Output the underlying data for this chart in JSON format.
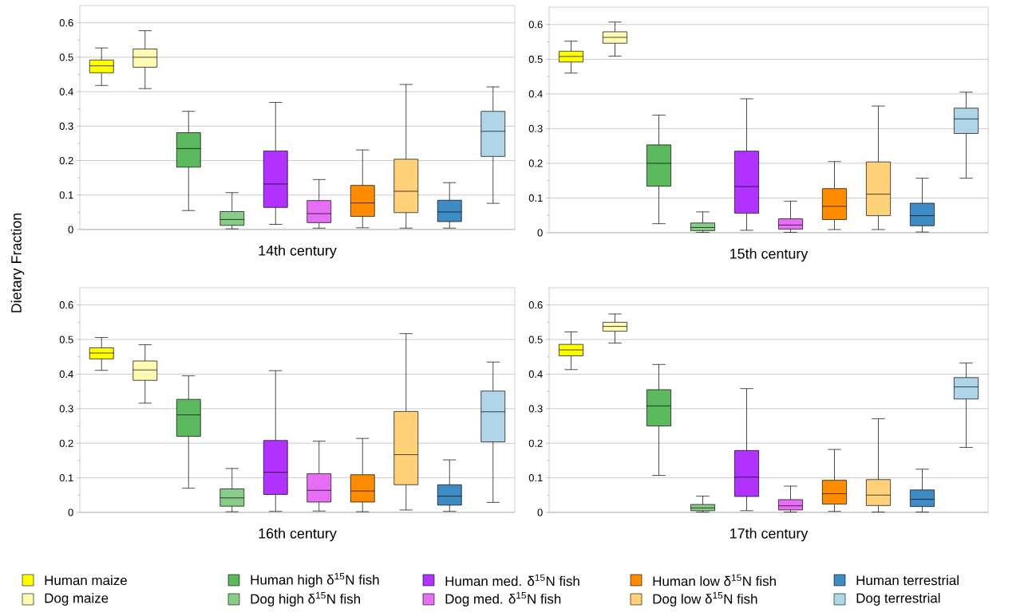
{
  "chart_data": [
    {
      "type": "box",
      "title": "14th century",
      "ylabel": "Dietary Fraction",
      "legend": "bottom",
      "grid": "y",
      "ylim": [
        0,
        0.65
      ],
      "yticks": [
        0,
        0.1,
        0.2,
        0.3,
        0.4,
        0.5,
        0.6
      ],
      "categories": [
        null,
        null,
        null,
        null,
        null,
        null,
        null,
        null,
        null,
        null
      ],
      "series": [
        {
          "name": "Human maize",
          "color": "#ffff00",
          "boxes": [
            {
              "low": 0.418,
              "q1": 0.455,
              "median": 0.475,
              "q3": 0.492,
              "high": 0.527
            },
            null,
            null,
            null,
            null,
            null,
            null,
            null,
            null,
            null
          ]
        },
        {
          "name": "Dog maize",
          "color": "#fffab4",
          "boxes": [
            null,
            {
              "low": 0.409,
              "q1": 0.471,
              "median": 0.5,
              "q3": 0.524,
              "high": 0.577
            },
            null,
            null,
            null,
            null,
            null,
            null,
            null,
            null
          ]
        },
        {
          "name": "Human high δ$^{15}$N fish",
          "color": "#5cb85c",
          "boxes": [
            null,
            null,
            {
              "low": 0.055,
              "q1": 0.181,
              "median": 0.235,
              "q3": 0.281,
              "high": 0.343
            },
            null,
            null,
            null,
            null,
            null,
            null,
            null
          ]
        },
        {
          "name": "Dog high δ$^{15}$N fish",
          "color": "#88cc88",
          "boxes": [
            null,
            null,
            null,
            {
              "low": 0.002,
              "q1": 0.012,
              "median": 0.029,
              "q3": 0.052,
              "high": 0.107
            },
            null,
            null,
            null,
            null,
            null,
            null
          ]
        },
        {
          "name": "Human med. δ$^{15}$N fish",
          "color": "#b233ff",
          "boxes": [
            null,
            null,
            null,
            null,
            {
              "low": 0.015,
              "q1": 0.064,
              "median": 0.132,
              "q3": 0.228,
              "high": 0.369
            },
            null,
            null,
            null,
            null,
            null
          ]
        },
        {
          "name": "Dog med. δ$^{15}$N fish",
          "color": "#e56ef5",
          "boxes": [
            null,
            null,
            null,
            null,
            null,
            {
              "low": 0.004,
              "q1": 0.02,
              "median": 0.046,
              "q3": 0.084,
              "high": 0.145
            },
            null,
            null,
            null,
            null
          ]
        },
        {
          "name": "Human low δ$^{15}$N fish",
          "color": "#ff8c00",
          "boxes": [
            null,
            null,
            null,
            null,
            null,
            null,
            {
              "low": 0.005,
              "q1": 0.038,
              "median": 0.077,
              "q3": 0.128,
              "high": 0.231
            },
            null,
            null,
            null
          ]
        },
        {
          "name": "Dog low δ$^{15}$N fish",
          "color": "#ffd27a",
          "boxes": [
            null,
            null,
            null,
            null,
            null,
            null,
            null,
            {
              "low": 0.004,
              "q1": 0.049,
              "median": 0.111,
              "q3": 0.204,
              "high": 0.421
            },
            null,
            null
          ]
        },
        {
          "name": "Human terrestrial",
          "color": "#3f8bc4",
          "boxes": [
            null,
            null,
            null,
            null,
            null,
            null,
            null,
            null,
            {
              "low": 0.004,
              "q1": 0.023,
              "median": 0.051,
              "q3": 0.085,
              "high": 0.136
            },
            null
          ]
        },
        {
          "name": "Dog terrestrial",
          "color": "#b0d4e8",
          "boxes": [
            null,
            null,
            null,
            null,
            null,
            null,
            null,
            null,
            null,
            {
              "low": 0.076,
              "q1": 0.212,
              "median": 0.285,
              "q3": 0.343,
              "high": 0.414
            }
          ]
        }
      ]
    },
    {
      "type": "box",
      "title": "15th century",
      "grid": "y",
      "ylim": [
        0,
        0.65
      ],
      "yticks": [
        0,
        0.1,
        0.2,
        0.3,
        0.4,
        0.5,
        0.6
      ],
      "categories": [
        null,
        null,
        null,
        null,
        null,
        null,
        null,
        null,
        null,
        null
      ],
      "series": [
        {
          "color": "#ffff00",
          "boxes": [
            {
              "low": 0.46,
              "q1": 0.492,
              "median": 0.508,
              "q3": 0.523,
              "high": 0.552
            },
            null,
            null,
            null,
            null,
            null,
            null,
            null,
            null,
            null
          ]
        },
        {
          "color": "#fffab4",
          "boxes": [
            null,
            {
              "low": 0.509,
              "q1": 0.546,
              "median": 0.563,
              "q3": 0.579,
              "high": 0.607
            },
            null,
            null,
            null,
            null,
            null,
            null,
            null,
            null
          ]
        },
        {
          "color": "#5cb85c",
          "boxes": [
            null,
            null,
            {
              "low": 0.026,
              "q1": 0.134,
              "median": 0.2,
              "q3": 0.253,
              "high": 0.339
            },
            null,
            null,
            null,
            null,
            null,
            null,
            null
          ]
        },
        {
          "color": "#88cc88",
          "boxes": [
            null,
            null,
            null,
            {
              "low": 0.001,
              "q1": 0.006,
              "median": 0.015,
              "q3": 0.028,
              "high": 0.06
            },
            null,
            null,
            null,
            null,
            null,
            null
          ]
        },
        {
          "color": "#b233ff",
          "boxes": [
            null,
            null,
            null,
            null,
            {
              "low": 0.007,
              "q1": 0.056,
              "median": 0.133,
              "q3": 0.235,
              "high": 0.386
            },
            null,
            null,
            null,
            null,
            null
          ]
        },
        {
          "color": "#e56ef5",
          "boxes": [
            null,
            null,
            null,
            null,
            null,
            {
              "low": 0.001,
              "q1": 0.01,
              "median": 0.022,
              "q3": 0.04,
              "high": 0.091
            },
            null,
            null,
            null,
            null
          ]
        },
        {
          "color": "#ff8c00",
          "boxes": [
            null,
            null,
            null,
            null,
            null,
            null,
            {
              "low": 0.009,
              "q1": 0.038,
              "median": 0.076,
              "q3": 0.127,
              "high": 0.205
            },
            null,
            null,
            null
          ]
        },
        {
          "color": "#ffd27a",
          "boxes": [
            null,
            null,
            null,
            null,
            null,
            null,
            null,
            {
              "low": 0.009,
              "q1": 0.049,
              "median": 0.111,
              "q3": 0.204,
              "high": 0.365
            },
            null,
            null
          ]
        },
        {
          "color": "#3f8bc4",
          "boxes": [
            null,
            null,
            null,
            null,
            null,
            null,
            null,
            null,
            {
              "low": 0.002,
              "q1": 0.02,
              "median": 0.049,
              "q3": 0.085,
              "high": 0.157
            },
            null
          ]
        },
        {
          "color": "#b0d4e8",
          "boxes": [
            null,
            null,
            null,
            null,
            null,
            null,
            null,
            null,
            null,
            {
              "low": 0.157,
              "q1": 0.286,
              "median": 0.328,
              "q3": 0.359,
              "high": 0.405
            }
          ]
        }
      ]
    },
    {
      "type": "box",
      "title": "16th century",
      "grid": "y",
      "ylim": [
        0,
        0.65
      ],
      "yticks": [
        0,
        0.1,
        0.2,
        0.3,
        0.4,
        0.5,
        0.6
      ],
      "categories": [
        null,
        null,
        null,
        null,
        null,
        null,
        null,
        null,
        null,
        null
      ],
      "series": [
        {
          "color": "#ffff00",
          "boxes": [
            {
              "low": 0.411,
              "q1": 0.444,
              "median": 0.461,
              "q3": 0.476,
              "high": 0.506
            },
            null,
            null,
            null,
            null,
            null,
            null,
            null,
            null,
            null
          ]
        },
        {
          "color": "#fffab4",
          "boxes": [
            null,
            {
              "low": 0.316,
              "q1": 0.382,
              "median": 0.412,
              "q3": 0.438,
              "high": 0.485
            },
            null,
            null,
            null,
            null,
            null,
            null,
            null,
            null
          ]
        },
        {
          "color": "#5cb85c",
          "boxes": [
            null,
            null,
            {
              "low": 0.07,
              "q1": 0.22,
              "median": 0.282,
              "q3": 0.327,
              "high": 0.395
            },
            null,
            null,
            null,
            null,
            null,
            null,
            null
          ]
        },
        {
          "color": "#88cc88",
          "boxes": [
            null,
            null,
            null,
            {
              "low": 0.002,
              "q1": 0.018,
              "median": 0.042,
              "q3": 0.068,
              "high": 0.127
            },
            null,
            null,
            null,
            null,
            null,
            null
          ]
        },
        {
          "color": "#b233ff",
          "boxes": [
            null,
            null,
            null,
            null,
            {
              "low": 0.003,
              "q1": 0.052,
              "median": 0.116,
              "q3": 0.208,
              "high": 0.41
            },
            null,
            null,
            null,
            null,
            null
          ]
        },
        {
          "color": "#e56ef5",
          "boxes": [
            null,
            null,
            null,
            null,
            null,
            {
              "low": 0.004,
              "q1": 0.03,
              "median": 0.064,
              "q3": 0.112,
              "high": 0.206
            },
            null,
            null,
            null,
            null
          ]
        },
        {
          "color": "#ff8c00",
          "boxes": [
            null,
            null,
            null,
            null,
            null,
            null,
            {
              "low": 0.002,
              "q1": 0.03,
              "median": 0.062,
              "q3": 0.109,
              "high": 0.214
            },
            null,
            null,
            null
          ]
        },
        {
          "color": "#ffd27a",
          "boxes": [
            null,
            null,
            null,
            null,
            null,
            null,
            null,
            {
              "low": 0.007,
              "q1": 0.08,
              "median": 0.167,
              "q3": 0.292,
              "high": 0.517
            },
            null,
            null
          ]
        },
        {
          "color": "#3f8bc4",
          "boxes": [
            null,
            null,
            null,
            null,
            null,
            null,
            null,
            null,
            {
              "low": 0.003,
              "q1": 0.021,
              "median": 0.047,
              "q3": 0.08,
              "high": 0.152
            },
            null
          ]
        },
        {
          "color": "#b0d4e8",
          "boxes": [
            null,
            null,
            null,
            null,
            null,
            null,
            null,
            null,
            null,
            {
              "low": 0.029,
              "q1": 0.204,
              "median": 0.291,
              "q3": 0.351,
              "high": 0.435
            }
          ]
        }
      ]
    },
    {
      "type": "box",
      "title": "17th century",
      "grid": "y",
      "ylim": [
        0,
        0.65
      ],
      "yticks": [
        0,
        0.1,
        0.2,
        0.3,
        0.4,
        0.5,
        0.6
      ],
      "categories": [
        null,
        null,
        null,
        null,
        null,
        null,
        null,
        null,
        null,
        null
      ],
      "series": [
        {
          "color": "#ffff00",
          "boxes": [
            {
              "low": 0.413,
              "q1": 0.453,
              "median": 0.47,
              "q3": 0.486,
              "high": 0.522
            },
            null,
            null,
            null,
            null,
            null,
            null,
            null,
            null,
            null
          ]
        },
        {
          "color": "#fffab4",
          "boxes": [
            null,
            {
              "low": 0.49,
              "q1": 0.524,
              "median": 0.538,
              "q3": 0.55,
              "high": 0.574
            },
            null,
            null,
            null,
            null,
            null,
            null,
            null,
            null
          ]
        },
        {
          "color": "#5cb85c",
          "boxes": [
            null,
            null,
            {
              "low": 0.107,
              "q1": 0.25,
              "median": 0.308,
              "q3": 0.355,
              "high": 0.428
            },
            null,
            null,
            null,
            null,
            null,
            null,
            null
          ]
        },
        {
          "color": "#88cc88",
          "boxes": [
            null,
            null,
            null,
            {
              "low": 0.001,
              "q1": 0.005,
              "median": 0.013,
              "q3": 0.023,
              "high": 0.047
            },
            null,
            null,
            null,
            null,
            null,
            null
          ]
        },
        {
          "color": "#b233ff",
          "boxes": [
            null,
            null,
            null,
            null,
            {
              "low": 0.005,
              "q1": 0.046,
              "median": 0.102,
              "q3": 0.179,
              "high": 0.358
            },
            null,
            null,
            null,
            null,
            null
          ]
        },
        {
          "color": "#e56ef5",
          "boxes": [
            null,
            null,
            null,
            null,
            null,
            {
              "low": 0.001,
              "q1": 0.007,
              "median": 0.019,
              "q3": 0.037,
              "high": 0.076
            },
            null,
            null,
            null,
            null
          ]
        },
        {
          "color": "#ff8c00",
          "boxes": [
            null,
            null,
            null,
            null,
            null,
            null,
            {
              "low": 0.003,
              "q1": 0.024,
              "median": 0.054,
              "q3": 0.093,
              "high": 0.182
            },
            null,
            null,
            null
          ]
        },
        {
          "color": "#ffd27a",
          "boxes": [
            null,
            null,
            null,
            null,
            null,
            null,
            null,
            {
              "low": 0.001,
              "q1": 0.02,
              "median": 0.05,
              "q3": 0.095,
              "high": 0.271
            },
            null,
            null
          ]
        },
        {
          "color": "#3f8bc4",
          "boxes": [
            null,
            null,
            null,
            null,
            null,
            null,
            null,
            null,
            {
              "low": 0.001,
              "q1": 0.017,
              "median": 0.038,
              "q3": 0.065,
              "high": 0.125
            },
            null
          ]
        },
        {
          "color": "#b0d4e8",
          "boxes": [
            null,
            null,
            null,
            null,
            null,
            null,
            null,
            null,
            null,
            {
              "low": 0.188,
              "q1": 0.328,
              "median": 0.363,
              "q3": 0.39,
              "high": 0.432
            }
          ]
        }
      ]
    }
  ]
}
